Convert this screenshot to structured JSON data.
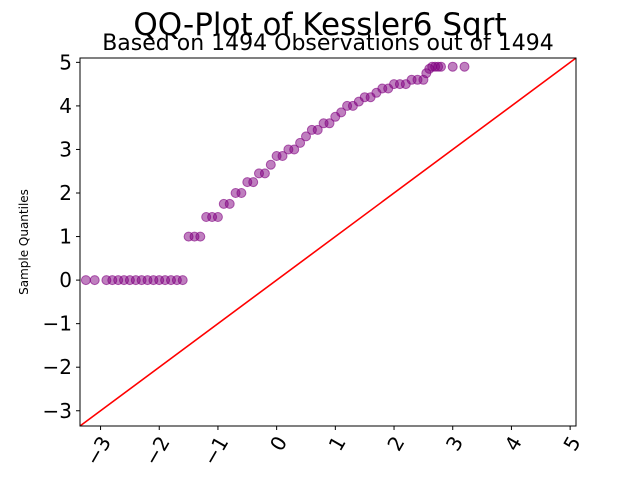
{
  "chart_data": {
    "type": "scatter",
    "title": "QQ-Plot of Kessler6 Sqrt",
    "subtitle": "Based on 1494 Observations out of 1494",
    "xlabel": "",
    "ylabel": "Sample Quantiles",
    "xlim": [
      -3.35,
      5.1
    ],
    "ylim": [
      -3.35,
      5.1
    ],
    "x_ticks": [
      -3,
      -2,
      -1,
      0,
      1,
      2,
      3,
      4,
      5
    ],
    "y_ticks": [
      -3,
      -2,
      -1,
      0,
      1,
      2,
      3,
      4,
      5
    ],
    "x_tick_labels": [
      "−3",
      "−2",
      "−1",
      "0",
      "1",
      "2",
      "3",
      "4",
      "5"
    ],
    "y_tick_labels": [
      "−3",
      "−2",
      "−1",
      "0",
      "1",
      "2",
      "3",
      "4",
      "5"
    ],
    "grid": false,
    "colors": {
      "points": "#800080",
      "reference_line": "#ff0000"
    },
    "reference_line": {
      "x": [
        -3.35,
        5.1
      ],
      "y": [
        -3.35,
        5.1
      ]
    },
    "series": [
      {
        "x": [
          3.2,
          3.0,
          2.8,
          2.75,
          2.7,
          2.65,
          2.6,
          2.55,
          2.5,
          2.4,
          2.3,
          2.2,
          2.1,
          2.0,
          1.9,
          1.8,
          1.7,
          1.6,
          1.5,
          1.4,
          1.3,
          1.2,
          1.1,
          1.0,
          0.9,
          0.8,
          0.7,
          0.6,
          0.5,
          0.4,
          0.3,
          0.2,
          0.1,
          0.0,
          -0.1,
          -0.2,
          -0.3,
          -0.4,
          -0.5,
          -0.6,
          -0.7,
          -0.8,
          -0.9,
          -1.0,
          -1.1,
          -1.2,
          -1.3,
          -1.4,
          -1.5,
          -1.6,
          -1.7,
          -1.8,
          -1.9,
          -2.0,
          -2.1,
          -2.2,
          -2.3,
          -2.4,
          -2.5,
          -2.6,
          -2.7,
          -2.8,
          -2.9,
          -3.1,
          -3.25
        ],
        "y": [
          4.9,
          4.9,
          4.9,
          4.9,
          4.9,
          4.9,
          4.85,
          4.75,
          4.6,
          4.6,
          4.6,
          4.5,
          4.5,
          4.5,
          4.4,
          4.4,
          4.3,
          4.2,
          4.2,
          4.1,
          4.0,
          4.0,
          3.85,
          3.75,
          3.6,
          3.6,
          3.45,
          3.45,
          3.3,
          3.15,
          3.0,
          3.0,
          2.85,
          2.85,
          2.65,
          2.45,
          2.45,
          2.25,
          2.25,
          2.0,
          2.0,
          1.75,
          1.75,
          1.45,
          1.45,
          1.45,
          1.0,
          1.0,
          1.0,
          0.0,
          0.0,
          0.0,
          0.0,
          0.0,
          0.0,
          0.0,
          0.0,
          0.0,
          0.0,
          0.0,
          0.0,
          0.0,
          0.0,
          0.0,
          0.0
        ]
      }
    ]
  }
}
